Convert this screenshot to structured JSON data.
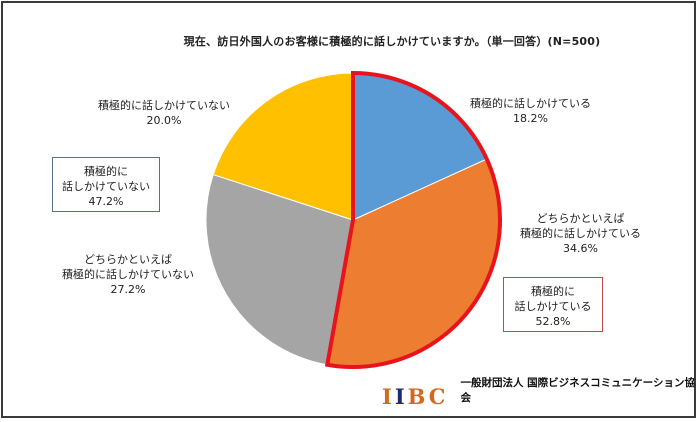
{
  "title": "現在、訪日外国人のお客様に積極的に話しかけていますか。（単一回答）(N=500)",
  "chart_data": {
    "type": "pie",
    "title": "現在、訪日外国人のお客様に積極的に話しかけていますか。（単一回答）(N=500)",
    "n": 500,
    "start_angle_deg": 0,
    "direction": "clockwise",
    "categories": [
      "積極的に話しかけている",
      "どちらかといえば積極的に話しかけている",
      "どちらかといえば積極的に話しかけていない",
      "積極的に話しかけていない"
    ],
    "values": [
      18.2,
      34.6,
      27.2,
      20.0
    ],
    "colors": [
      "#5b9bd5",
      "#ed7d31",
      "#a5a5a5",
      "#ffc000"
    ],
    "groups": [
      {
        "label": "積極的に話しかけている",
        "value": 52.8,
        "members": [
          0,
          1
        ],
        "highlight_color": "#e8141b"
      },
      {
        "label": "積極的に話しかけていない",
        "value": 47.2,
        "members": [
          2,
          3
        ]
      }
    ],
    "legend": "none (data labels outside)"
  },
  "labels": {
    "s1": {
      "line1": "積極的に話しかけている",
      "pct": "18.2%"
    },
    "s2": {
      "line1": "どちらかといえば",
      "line2": "積極的に話しかけている",
      "pct": "34.6%"
    },
    "s3": {
      "line1": "どちらかといえば",
      "line2": "積極的に話しかけていない",
      "pct": "27.2%"
    },
    "s4": {
      "line1": "積極的に話しかけていない",
      "pct": "20.0%"
    }
  },
  "boxes": {
    "positive": {
      "line1": "積極的に",
      "line2": "話しかけている",
      "pct": "52.8%"
    },
    "negative": {
      "line1": "積極的に",
      "line2": "話しかけていない",
      "pct": "47.2%"
    }
  },
  "footer": {
    "logo_letters": [
      "I",
      "I",
      "B",
      "C"
    ],
    "org_name": "一般財団法人 国際ビジネスコミュニケーション協会"
  }
}
